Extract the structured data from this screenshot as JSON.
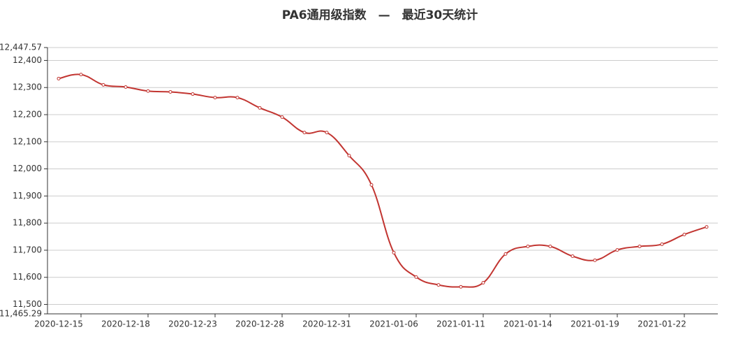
{
  "chart_data": {
    "type": "line",
    "title": "PA6通用级指数　—　最近30天统计",
    "categories": [
      "2020-12-15",
      null,
      null,
      "2020-12-18",
      null,
      null,
      "2020-12-23",
      null,
      null,
      "2020-12-28",
      null,
      null,
      "2020-12-31",
      null,
      null,
      "2021-01-06",
      null,
      null,
      "2021-01-11",
      null,
      null,
      "2021-01-14",
      null,
      null,
      "2021-01-19",
      null,
      null,
      "2021-01-22",
      null,
      null
    ],
    "series": [
      {
        "color": "#c23531",
        "values": [
          12333,
          12348,
          12310,
          12302,
          12287,
          12284,
          12276,
          12263,
          12263,
          12225,
          12191,
          12134,
          12134,
          12049,
          11941,
          11691,
          11601,
          11572,
          11565,
          11580,
          11686,
          11714,
          11714,
          11678,
          11663,
          11701,
          11714,
          11722,
          11758,
          11786
        ]
      }
    ],
    "ylim": [
      11465.29,
      12447.57
    ],
    "yticks": [
      {
        "value": 11465.29,
        "label": "11,465.29"
      },
      {
        "value": 11500,
        "label": "11,500"
      },
      {
        "value": 11600,
        "label": "11,600"
      },
      {
        "value": 11700,
        "label": "11,700"
      },
      {
        "value": 11800,
        "label": "11,800"
      },
      {
        "value": 11900,
        "label": "11,900"
      },
      {
        "value": 12000,
        "label": "12,000"
      },
      {
        "value": 12100,
        "label": "12,100"
      },
      {
        "value": 12200,
        "label": "12,200"
      },
      {
        "value": 12300,
        "label": "12,300"
      },
      {
        "value": 12400,
        "label": "12,400"
      },
      {
        "value": 12447.57,
        "label": "12,447.57"
      }
    ],
    "grid": true
  }
}
